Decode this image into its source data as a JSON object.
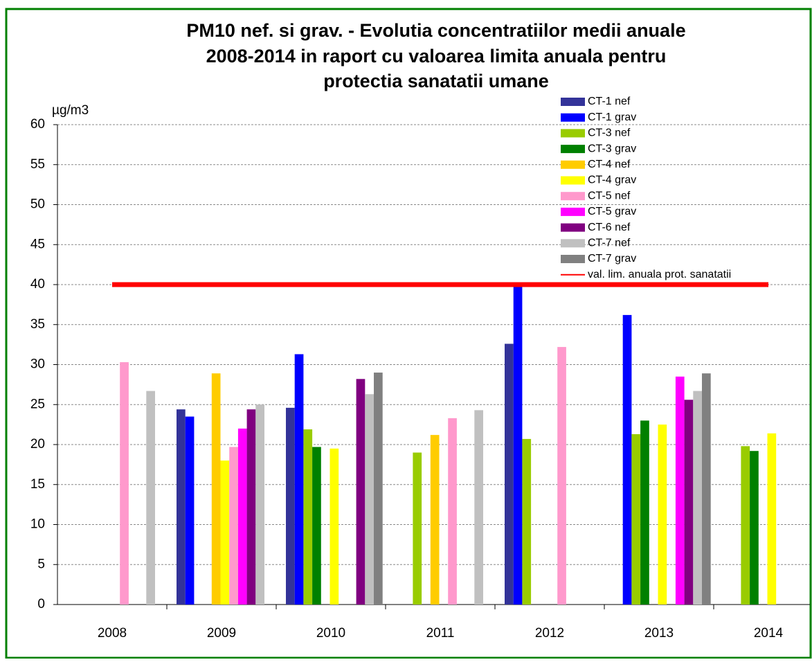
{
  "chart_data": {
    "type": "bar",
    "title": [
      "PM10 nef. si grav. - Evolutia concentratiilor medii anuale",
      "2008-2014 in raport cu valoarea limita anuala pentru",
      "protectia sanatatii umane"
    ],
    "y_label": "µg/m3",
    "categories": [
      "2008",
      "2009",
      "2010",
      "2011",
      "2012",
      "2013",
      "2014"
    ],
    "series": [
      {
        "name": "CT-1 nef",
        "color": "#333399",
        "values": [
          null,
          24.4,
          24.6,
          null,
          32.6,
          null,
          null
        ]
      },
      {
        "name": "CT-1 grav",
        "color": "#0000ff",
        "values": [
          null,
          23.5,
          31.3,
          null,
          40.0,
          36.2,
          null
        ]
      },
      {
        "name": "CT-3 nef",
        "color": "#99cc00",
        "values": [
          null,
          null,
          21.9,
          19.0,
          20.7,
          21.3,
          19.8
        ]
      },
      {
        "name": "CT-3 grav",
        "color": "#008000",
        "values": [
          null,
          null,
          19.7,
          null,
          null,
          23.0,
          19.2
        ]
      },
      {
        "name": "CT-4 nef",
        "color": "#ffcc00",
        "values": [
          null,
          28.9,
          null,
          21.2,
          null,
          null,
          null
        ]
      },
      {
        "name": "CT-4 grav",
        "color": "#ffff00",
        "values": [
          null,
          18.0,
          19.5,
          null,
          null,
          22.5,
          21.4
        ]
      },
      {
        "name": "CT-5 nef",
        "color": "#ff99cc",
        "values": [
          30.3,
          19.7,
          null,
          23.3,
          32.2,
          null,
          null
        ]
      },
      {
        "name": "CT-5 grav",
        "color": "#ff00ff",
        "values": [
          null,
          22.0,
          null,
          null,
          null,
          28.5,
          null
        ]
      },
      {
        "name": "CT-6 nef",
        "color": "#800080",
        "values": [
          null,
          24.4,
          28.2,
          null,
          null,
          25.6,
          null
        ]
      },
      {
        "name": "CT-7 nef",
        "color": "#c0c0c0",
        "values": [
          26.7,
          25.0,
          26.3,
          24.3,
          null,
          26.7,
          null
        ]
      },
      {
        "name": "CT-7 grav",
        "color": "#808080",
        "values": [
          null,
          null,
          29.0,
          null,
          null,
          28.9,
          null
        ]
      },
      {
        "name": "val. lim. anuala prot. sanatatii",
        "color": "#ff0000",
        "type": "line",
        "values": [
          40,
          40,
          40,
          40,
          40,
          40,
          40
        ]
      }
    ],
    "ylim": [
      0,
      60
    ],
    "yticks": [
      0,
      5,
      10,
      15,
      20,
      25,
      30,
      35,
      40,
      45,
      50,
      55,
      60
    ],
    "grid": true,
    "legend": "top-right"
  }
}
